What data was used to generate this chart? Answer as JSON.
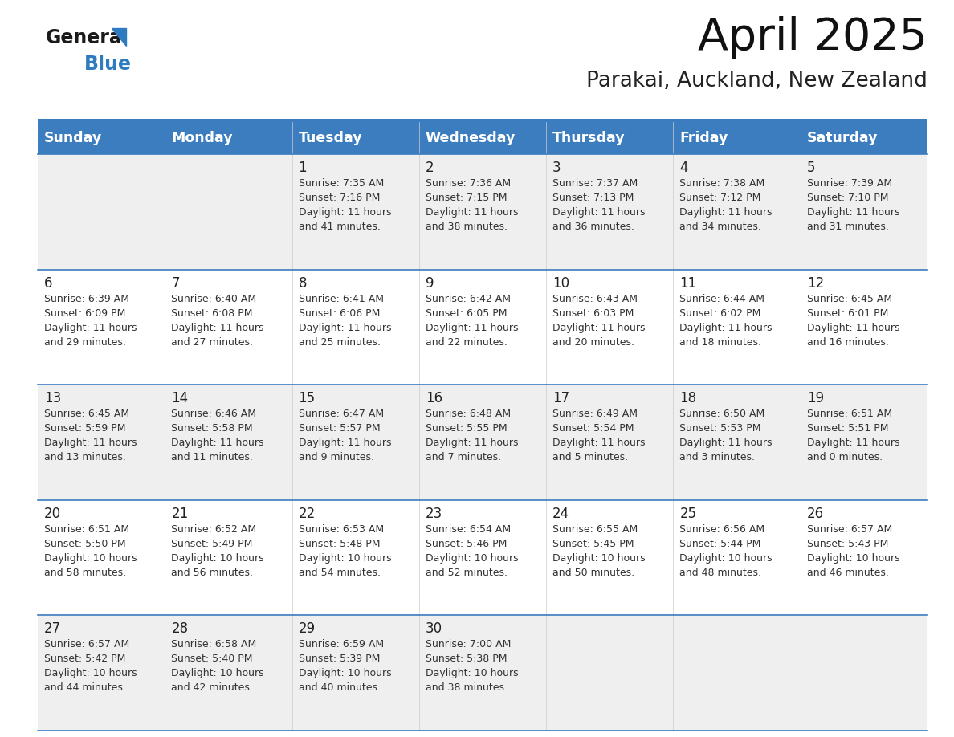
{
  "title": "April 2025",
  "subtitle": "Parakai, Auckland, New Zealand",
  "header_bg": "#3c7dbf",
  "header_text_color": "#ffffff",
  "days_of_week": [
    "Sunday",
    "Monday",
    "Tuesday",
    "Wednesday",
    "Thursday",
    "Friday",
    "Saturday"
  ],
  "row_bg_light": "#efefef",
  "row_bg_white": "#ffffff",
  "cell_text_color": "#333333",
  "day_num_color": "#222222",
  "border_color": "#3c7dbf",
  "logo_black": "#1a1a1a",
  "logo_blue": "#2e7bbf",
  "weeks": [
    [
      {
        "day": "",
        "sunrise": "",
        "sunset": "",
        "daylight": ""
      },
      {
        "day": "",
        "sunrise": "",
        "sunset": "",
        "daylight": ""
      },
      {
        "day": "1",
        "sunrise": "Sunrise: 7:35 AM",
        "sunset": "Sunset: 7:16 PM",
        "daylight": "Daylight: 11 hours\nand 41 minutes."
      },
      {
        "day": "2",
        "sunrise": "Sunrise: 7:36 AM",
        "sunset": "Sunset: 7:15 PM",
        "daylight": "Daylight: 11 hours\nand 38 minutes."
      },
      {
        "day": "3",
        "sunrise": "Sunrise: 7:37 AM",
        "sunset": "Sunset: 7:13 PM",
        "daylight": "Daylight: 11 hours\nand 36 minutes."
      },
      {
        "day": "4",
        "sunrise": "Sunrise: 7:38 AM",
        "sunset": "Sunset: 7:12 PM",
        "daylight": "Daylight: 11 hours\nand 34 minutes."
      },
      {
        "day": "5",
        "sunrise": "Sunrise: 7:39 AM",
        "sunset": "Sunset: 7:10 PM",
        "daylight": "Daylight: 11 hours\nand 31 minutes."
      }
    ],
    [
      {
        "day": "6",
        "sunrise": "Sunrise: 6:39 AM",
        "sunset": "Sunset: 6:09 PM",
        "daylight": "Daylight: 11 hours\nand 29 minutes."
      },
      {
        "day": "7",
        "sunrise": "Sunrise: 6:40 AM",
        "sunset": "Sunset: 6:08 PM",
        "daylight": "Daylight: 11 hours\nand 27 minutes."
      },
      {
        "day": "8",
        "sunrise": "Sunrise: 6:41 AM",
        "sunset": "Sunset: 6:06 PM",
        "daylight": "Daylight: 11 hours\nand 25 minutes."
      },
      {
        "day": "9",
        "sunrise": "Sunrise: 6:42 AM",
        "sunset": "Sunset: 6:05 PM",
        "daylight": "Daylight: 11 hours\nand 22 minutes."
      },
      {
        "day": "10",
        "sunrise": "Sunrise: 6:43 AM",
        "sunset": "Sunset: 6:03 PM",
        "daylight": "Daylight: 11 hours\nand 20 minutes."
      },
      {
        "day": "11",
        "sunrise": "Sunrise: 6:44 AM",
        "sunset": "Sunset: 6:02 PM",
        "daylight": "Daylight: 11 hours\nand 18 minutes."
      },
      {
        "day": "12",
        "sunrise": "Sunrise: 6:45 AM",
        "sunset": "Sunset: 6:01 PM",
        "daylight": "Daylight: 11 hours\nand 16 minutes."
      }
    ],
    [
      {
        "day": "13",
        "sunrise": "Sunrise: 6:45 AM",
        "sunset": "Sunset: 5:59 PM",
        "daylight": "Daylight: 11 hours\nand 13 minutes."
      },
      {
        "day": "14",
        "sunrise": "Sunrise: 6:46 AM",
        "sunset": "Sunset: 5:58 PM",
        "daylight": "Daylight: 11 hours\nand 11 minutes."
      },
      {
        "day": "15",
        "sunrise": "Sunrise: 6:47 AM",
        "sunset": "Sunset: 5:57 PM",
        "daylight": "Daylight: 11 hours\nand 9 minutes."
      },
      {
        "day": "16",
        "sunrise": "Sunrise: 6:48 AM",
        "sunset": "Sunset: 5:55 PM",
        "daylight": "Daylight: 11 hours\nand 7 minutes."
      },
      {
        "day": "17",
        "sunrise": "Sunrise: 6:49 AM",
        "sunset": "Sunset: 5:54 PM",
        "daylight": "Daylight: 11 hours\nand 5 minutes."
      },
      {
        "day": "18",
        "sunrise": "Sunrise: 6:50 AM",
        "sunset": "Sunset: 5:53 PM",
        "daylight": "Daylight: 11 hours\nand 3 minutes."
      },
      {
        "day": "19",
        "sunrise": "Sunrise: 6:51 AM",
        "sunset": "Sunset: 5:51 PM",
        "daylight": "Daylight: 11 hours\nand 0 minutes."
      }
    ],
    [
      {
        "day": "20",
        "sunrise": "Sunrise: 6:51 AM",
        "sunset": "Sunset: 5:50 PM",
        "daylight": "Daylight: 10 hours\nand 58 minutes."
      },
      {
        "day": "21",
        "sunrise": "Sunrise: 6:52 AM",
        "sunset": "Sunset: 5:49 PM",
        "daylight": "Daylight: 10 hours\nand 56 minutes."
      },
      {
        "day": "22",
        "sunrise": "Sunrise: 6:53 AM",
        "sunset": "Sunset: 5:48 PM",
        "daylight": "Daylight: 10 hours\nand 54 minutes."
      },
      {
        "day": "23",
        "sunrise": "Sunrise: 6:54 AM",
        "sunset": "Sunset: 5:46 PM",
        "daylight": "Daylight: 10 hours\nand 52 minutes."
      },
      {
        "day": "24",
        "sunrise": "Sunrise: 6:55 AM",
        "sunset": "Sunset: 5:45 PM",
        "daylight": "Daylight: 10 hours\nand 50 minutes."
      },
      {
        "day": "25",
        "sunrise": "Sunrise: 6:56 AM",
        "sunset": "Sunset: 5:44 PM",
        "daylight": "Daylight: 10 hours\nand 48 minutes."
      },
      {
        "day": "26",
        "sunrise": "Sunrise: 6:57 AM",
        "sunset": "Sunset: 5:43 PM",
        "daylight": "Daylight: 10 hours\nand 46 minutes."
      }
    ],
    [
      {
        "day": "27",
        "sunrise": "Sunrise: 6:57 AM",
        "sunset": "Sunset: 5:42 PM",
        "daylight": "Daylight: 10 hours\nand 44 minutes."
      },
      {
        "day": "28",
        "sunrise": "Sunrise: 6:58 AM",
        "sunset": "Sunset: 5:40 PM",
        "daylight": "Daylight: 10 hours\nand 42 minutes."
      },
      {
        "day": "29",
        "sunrise": "Sunrise: 6:59 AM",
        "sunset": "Sunset: 5:39 PM",
        "daylight": "Daylight: 10 hours\nand 40 minutes."
      },
      {
        "day": "30",
        "sunrise": "Sunrise: 7:00 AM",
        "sunset": "Sunset: 5:38 PM",
        "daylight": "Daylight: 10 hours\nand 38 minutes."
      },
      {
        "day": "",
        "sunrise": "",
        "sunset": "",
        "daylight": ""
      },
      {
        "day": "",
        "sunrise": "",
        "sunset": "",
        "daylight": ""
      },
      {
        "day": "",
        "sunrise": "",
        "sunset": "",
        "daylight": ""
      }
    ]
  ]
}
